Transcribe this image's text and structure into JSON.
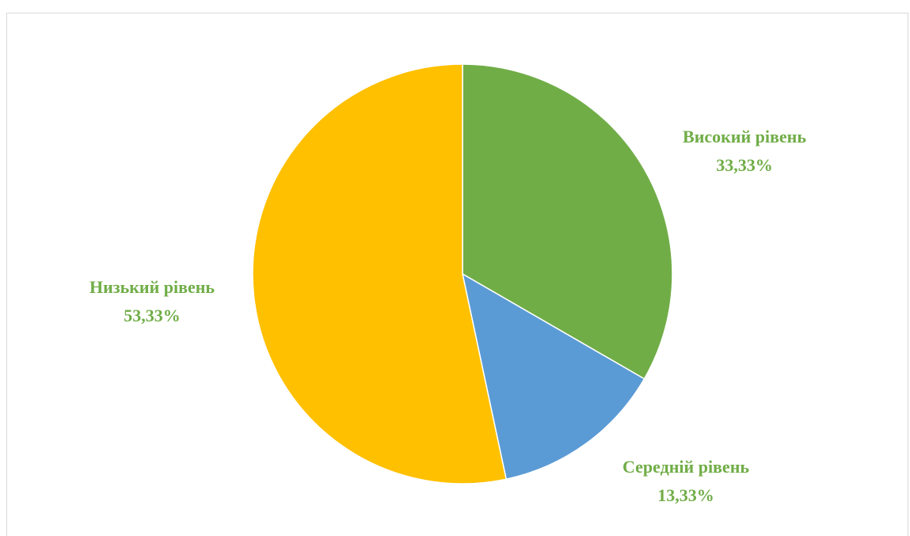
{
  "chart_data": {
    "type": "pie",
    "title": "",
    "slices": [
      {
        "label": "Високий рівень",
        "value": 33.33,
        "value_label": "33,33%",
        "color": "#70ad47"
      },
      {
        "label": "Середній рівень",
        "value": 13.33,
        "value_label": "13,33%",
        "color": "#5b9bd5"
      },
      {
        "label": "Низький рівень",
        "value": 53.33,
        "value_label": "53,33%",
        "color": "#ffc000"
      }
    ],
    "label_color": "#70ad47",
    "start_angle_deg": 0,
    "direction": "clockwise"
  }
}
